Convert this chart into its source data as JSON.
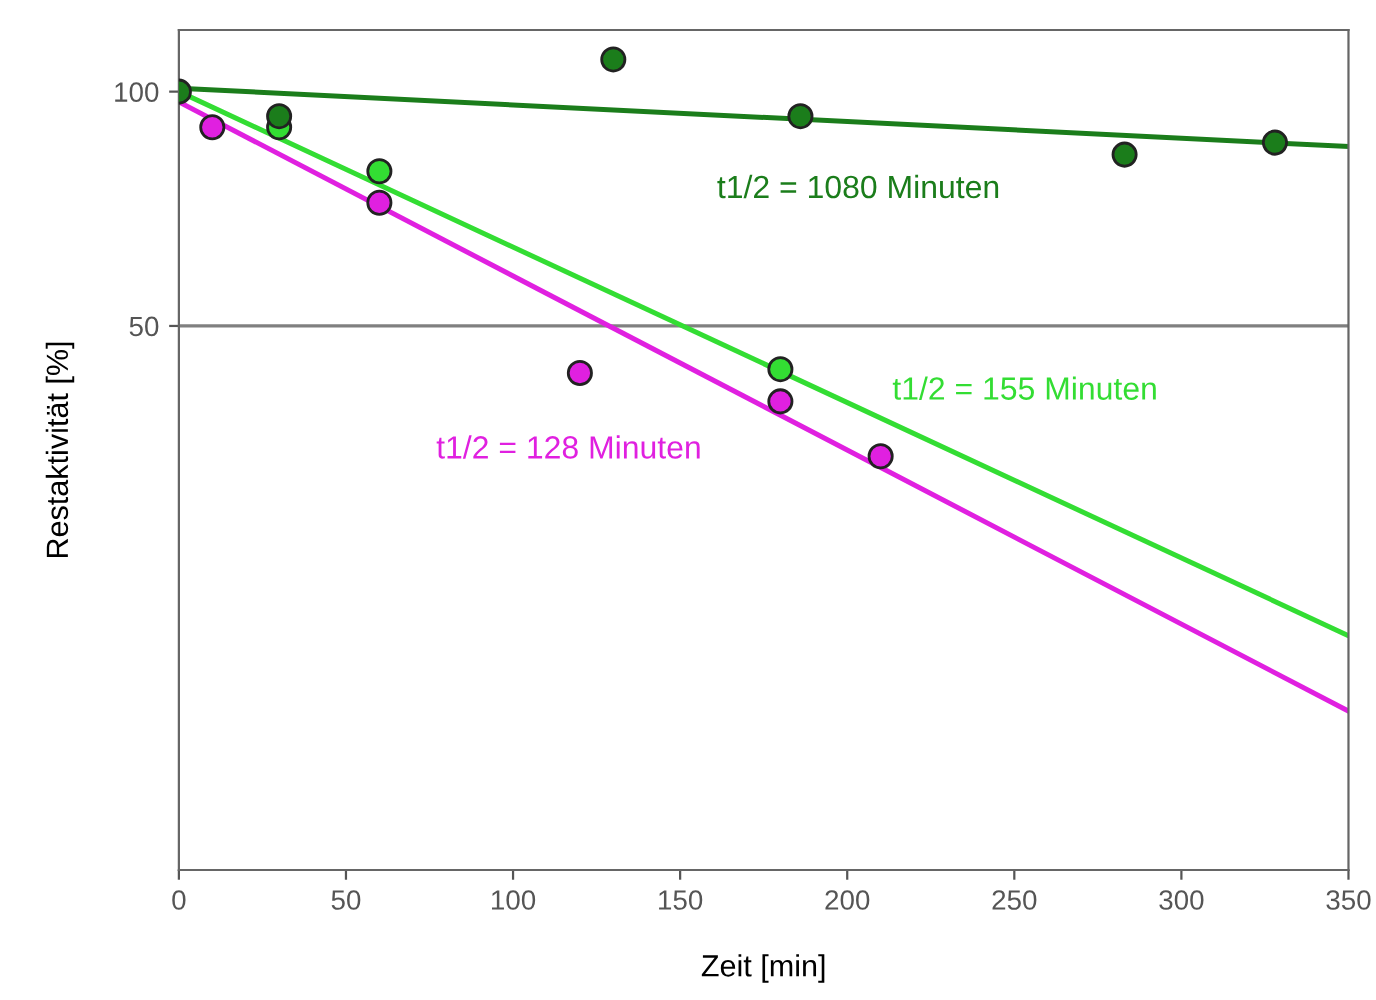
{
  "chart_data": {
    "type": "scatter",
    "xlabel": "Zeit [min]",
    "ylabel": "Restaktivität [%]",
    "log": "y",
    "xlim": [
      0,
      350
    ],
    "xticks": [
      0,
      50,
      100,
      150,
      200,
      250,
      300,
      350
    ],
    "ylim": [
      10,
      120
    ],
    "yticks": [
      50,
      100
    ],
    "grid": false,
    "ref_lines": [
      {
        "axis": "y",
        "value": 50,
        "color": "#808080"
      }
    ],
    "series": [
      {
        "type": "line",
        "marker": "none",
        "color": "#1b7d1b",
        "x": [
          0,
          350
        ],
        "values": [
          101,
          85
        ]
      },
      {
        "type": "line",
        "marker": "none",
        "color": "#33dd33",
        "x": [
          0,
          350
        ],
        "values": [
          100,
          20
        ]
      },
      {
        "type": "line",
        "marker": "none",
        "color": "#e020e0",
        "x": [
          0,
          350
        ],
        "values": [
          97,
          16
        ]
      },
      {
        "marker": "circle",
        "color": "#e020e0",
        "x": [
          10,
          60,
          120,
          180,
          210
        ],
        "values": [
          90,
          72,
          43.5,
          40,
          34
        ]
      },
      {
        "marker": "circle",
        "color": "#33dd33",
        "x": [
          30,
          60,
          180
        ],
        "values": [
          90,
          79,
          44
        ]
      },
      {
        "marker": "circle",
        "color": "#1b7d1b",
        "x": [
          0,
          30,
          130,
          186,
          283,
          328
        ],
        "values": [
          100,
          93,
          110,
          93,
          83,
          86
        ]
      }
    ],
    "annotations": [
      "t1/2 = 1080 Minuten",
      "t1/2 = 155 Minuten",
      "t1/2 = 128 Minuten"
    ]
  }
}
